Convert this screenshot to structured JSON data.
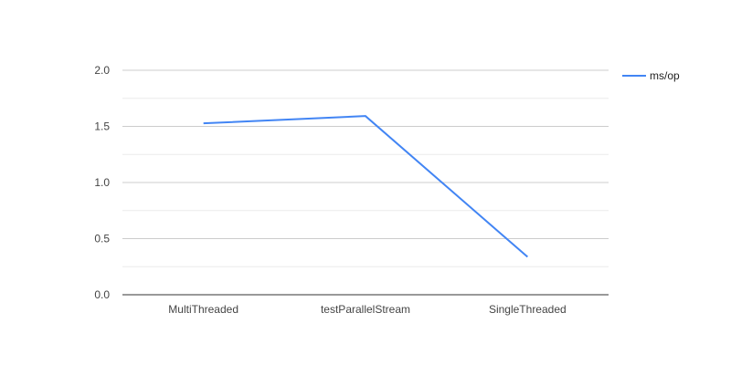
{
  "chart_data": {
    "type": "line",
    "title": "",
    "xlabel": "",
    "ylabel": "",
    "categories": [
      "MultiThreaded",
      "testParallelStream",
      "SingleThreaded"
    ],
    "series": [
      {
        "name": "ms/op",
        "values": [
          1.527,
          1.592,
          0.337
        ],
        "color": "#4285f4"
      }
    ],
    "ylim": [
      0,
      2
    ],
    "yticks": [
      "0.0",
      "0.5",
      "1.0",
      "1.5",
      "2.0"
    ],
    "minor_gridlines": true,
    "grid": true,
    "legend_position": "right"
  }
}
